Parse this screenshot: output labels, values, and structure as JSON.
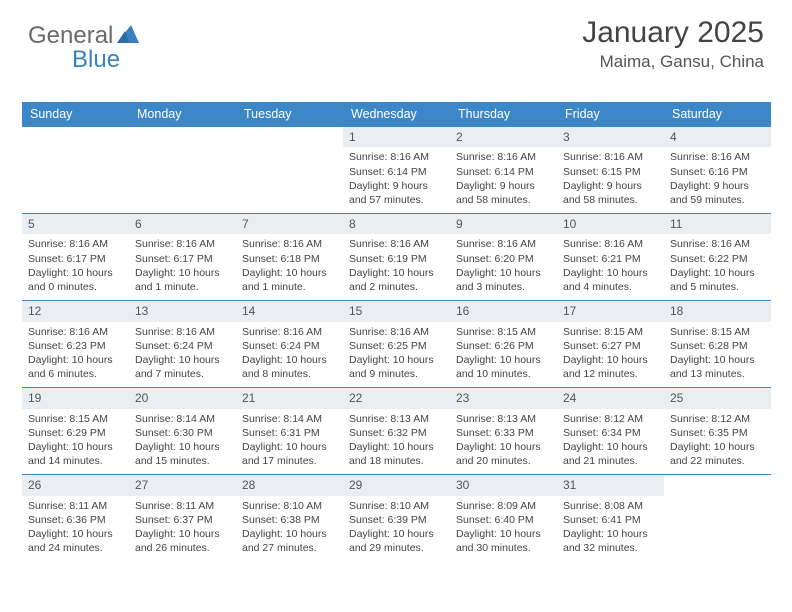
{
  "brand": {
    "part1": "General",
    "part2": "Blue"
  },
  "title": "January 2025",
  "location": "Maima, Gansu, China",
  "colors": {
    "header_bg": "#3b87c8",
    "header_text": "#ffffff",
    "border": "#3b87c8",
    "daynum_bg": "#e9eef2",
    "text": "#444444",
    "brand_grey": "#6a6a6a",
    "brand_blue": "#3b7fbf"
  },
  "day_headers": [
    "Sunday",
    "Monday",
    "Tuesday",
    "Wednesday",
    "Thursday",
    "Friday",
    "Saturday"
  ],
  "weeks": [
    [
      {
        "empty": true
      },
      {
        "empty": true
      },
      {
        "empty": true
      },
      {
        "n": "1",
        "sr": "8:16 AM",
        "ss": "6:14 PM",
        "dl": "9 hours and 57 minutes."
      },
      {
        "n": "2",
        "sr": "8:16 AM",
        "ss": "6:14 PM",
        "dl": "9 hours and 58 minutes."
      },
      {
        "n": "3",
        "sr": "8:16 AM",
        "ss": "6:15 PM",
        "dl": "9 hours and 58 minutes."
      },
      {
        "n": "4",
        "sr": "8:16 AM",
        "ss": "6:16 PM",
        "dl": "9 hours and 59 minutes."
      }
    ],
    [
      {
        "n": "5",
        "sr": "8:16 AM",
        "ss": "6:17 PM",
        "dl": "10 hours and 0 minutes."
      },
      {
        "n": "6",
        "sr": "8:16 AM",
        "ss": "6:17 PM",
        "dl": "10 hours and 1 minute."
      },
      {
        "n": "7",
        "sr": "8:16 AM",
        "ss": "6:18 PM",
        "dl": "10 hours and 1 minute."
      },
      {
        "n": "8",
        "sr": "8:16 AM",
        "ss": "6:19 PM",
        "dl": "10 hours and 2 minutes."
      },
      {
        "n": "9",
        "sr": "8:16 AM",
        "ss": "6:20 PM",
        "dl": "10 hours and 3 minutes."
      },
      {
        "n": "10",
        "sr": "8:16 AM",
        "ss": "6:21 PM",
        "dl": "10 hours and 4 minutes."
      },
      {
        "n": "11",
        "sr": "8:16 AM",
        "ss": "6:22 PM",
        "dl": "10 hours and 5 minutes."
      }
    ],
    [
      {
        "n": "12",
        "sr": "8:16 AM",
        "ss": "6:23 PM",
        "dl": "10 hours and 6 minutes."
      },
      {
        "n": "13",
        "sr": "8:16 AM",
        "ss": "6:24 PM",
        "dl": "10 hours and 7 minutes."
      },
      {
        "n": "14",
        "sr": "8:16 AM",
        "ss": "6:24 PM",
        "dl": "10 hours and 8 minutes."
      },
      {
        "n": "15",
        "sr": "8:16 AM",
        "ss": "6:25 PM",
        "dl": "10 hours and 9 minutes."
      },
      {
        "n": "16",
        "sr": "8:15 AM",
        "ss": "6:26 PM",
        "dl": "10 hours and 10 minutes."
      },
      {
        "n": "17",
        "sr": "8:15 AM",
        "ss": "6:27 PM",
        "dl": "10 hours and 12 minutes."
      },
      {
        "n": "18",
        "sr": "8:15 AM",
        "ss": "6:28 PM",
        "dl": "10 hours and 13 minutes."
      }
    ],
    [
      {
        "n": "19",
        "sr": "8:15 AM",
        "ss": "6:29 PM",
        "dl": "10 hours and 14 minutes."
      },
      {
        "n": "20",
        "sr": "8:14 AM",
        "ss": "6:30 PM",
        "dl": "10 hours and 15 minutes."
      },
      {
        "n": "21",
        "sr": "8:14 AM",
        "ss": "6:31 PM",
        "dl": "10 hours and 17 minutes."
      },
      {
        "n": "22",
        "sr": "8:13 AM",
        "ss": "6:32 PM",
        "dl": "10 hours and 18 minutes."
      },
      {
        "n": "23",
        "sr": "8:13 AM",
        "ss": "6:33 PM",
        "dl": "10 hours and 20 minutes."
      },
      {
        "n": "24",
        "sr": "8:12 AM",
        "ss": "6:34 PM",
        "dl": "10 hours and 21 minutes."
      },
      {
        "n": "25",
        "sr": "8:12 AM",
        "ss": "6:35 PM",
        "dl": "10 hours and 22 minutes."
      }
    ],
    [
      {
        "n": "26",
        "sr": "8:11 AM",
        "ss": "6:36 PM",
        "dl": "10 hours and 24 minutes."
      },
      {
        "n": "27",
        "sr": "8:11 AM",
        "ss": "6:37 PM",
        "dl": "10 hours and 26 minutes."
      },
      {
        "n": "28",
        "sr": "8:10 AM",
        "ss": "6:38 PM",
        "dl": "10 hours and 27 minutes."
      },
      {
        "n": "29",
        "sr": "8:10 AM",
        "ss": "6:39 PM",
        "dl": "10 hours and 29 minutes."
      },
      {
        "n": "30",
        "sr": "8:09 AM",
        "ss": "6:40 PM",
        "dl": "10 hours and 30 minutes."
      },
      {
        "n": "31",
        "sr": "8:08 AM",
        "ss": "6:41 PM",
        "dl": "10 hours and 32 minutes."
      },
      {
        "empty": true
      }
    ]
  ],
  "labels": {
    "sunrise": "Sunrise:",
    "sunset": "Sunset:",
    "daylight": "Daylight:"
  }
}
